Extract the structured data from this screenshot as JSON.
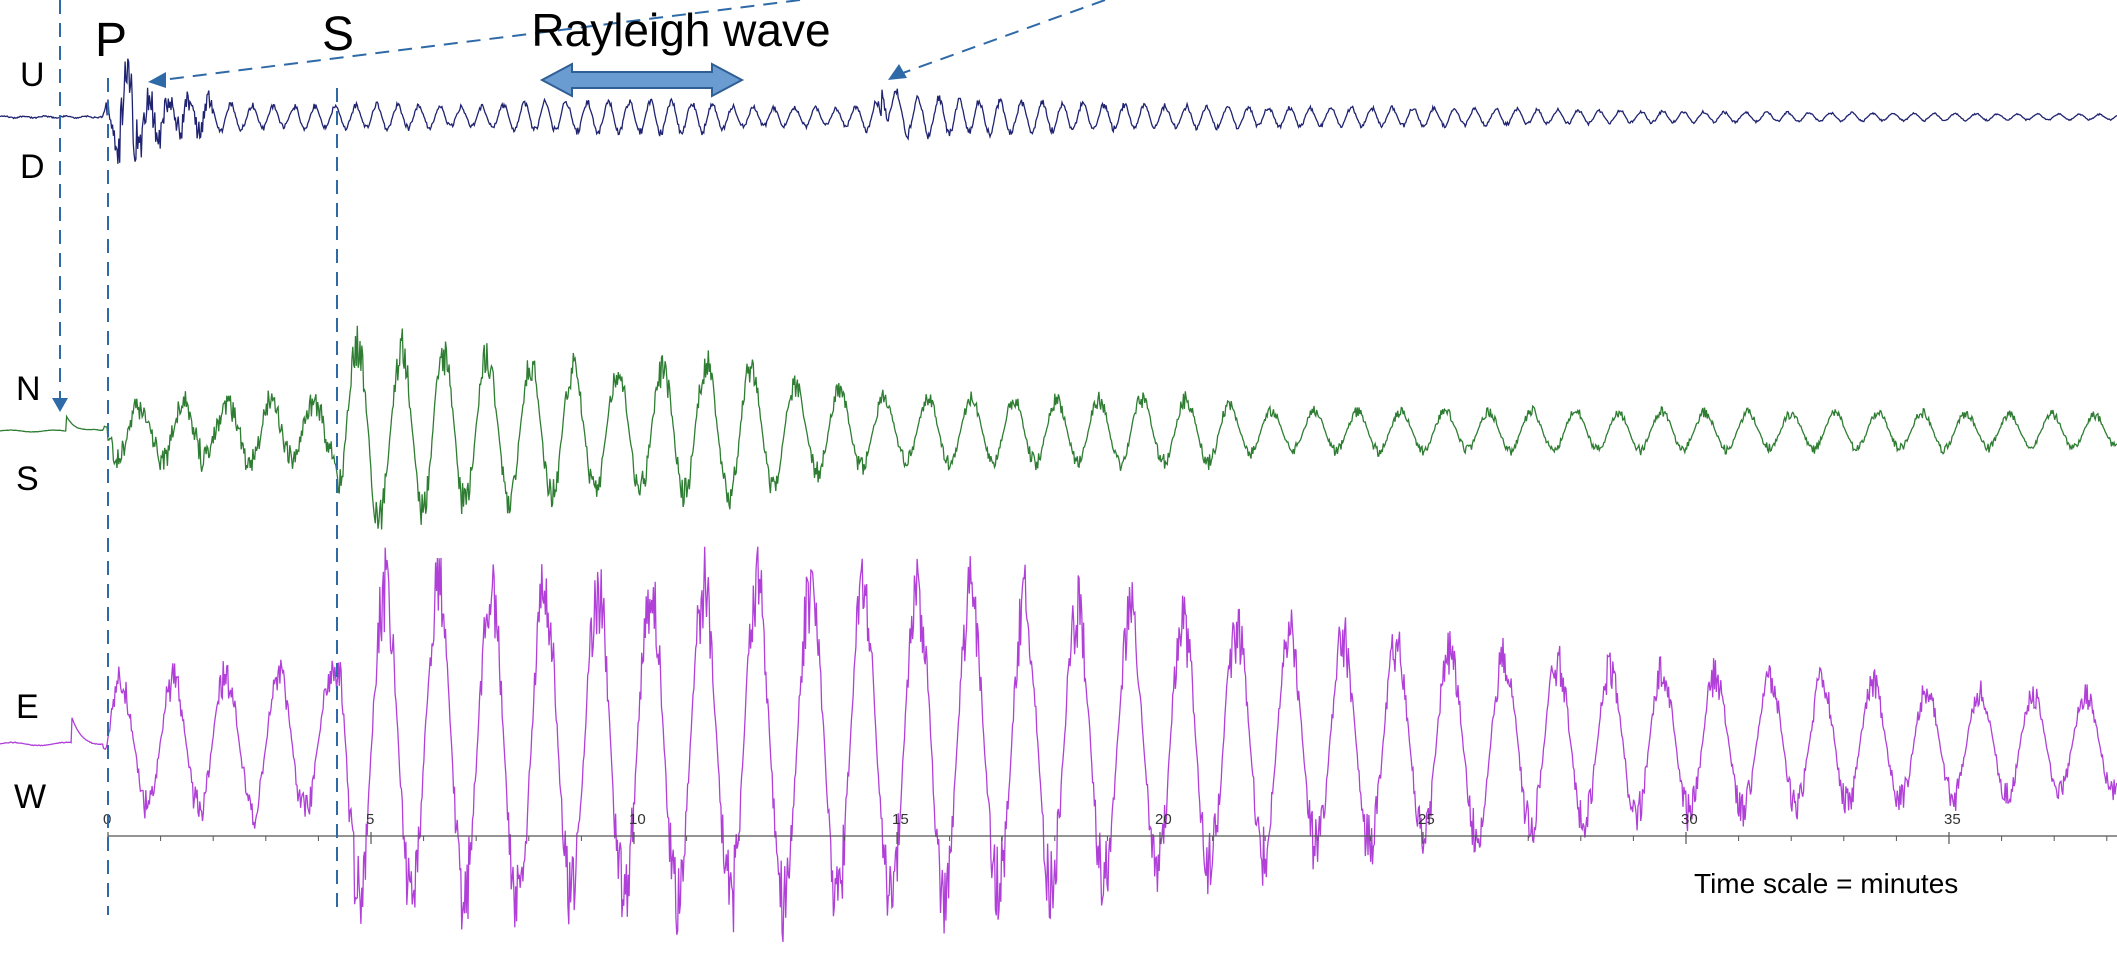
{
  "chart_data": {
    "type": "line",
    "title": "",
    "xlabel": "Time scale = minutes",
    "ylabel": "",
    "x_unit": "minutes",
    "xlim": [
      0,
      38
    ],
    "x_ticks": [
      0,
      5,
      10,
      15,
      20,
      25,
      30,
      35
    ],
    "x_tick_labels": [
      "0",
      "5",
      "10",
      "15",
      "20",
      "25",
      "30",
      "35"
    ],
    "grid": false,
    "legend": "none",
    "series": [
      {
        "key": "ud",
        "top_label": "U",
        "bottom_label": "D",
        "color": "#1f2370",
        "pre_event_start": -2.0,
        "envelope": [
          [
            -2,
            0.02
          ],
          [
            -0.1,
            0.02
          ],
          [
            0,
            0.35
          ],
          [
            0.3,
            1.0
          ],
          [
            1.0,
            0.45
          ],
          [
            3.0,
            0.25
          ],
          [
            4.3,
            0.25
          ],
          [
            5,
            0.28
          ],
          [
            7,
            0.22
          ],
          [
            8,
            0.32
          ],
          [
            11,
            0.38
          ],
          [
            12,
            0.22
          ],
          [
            14,
            0.2
          ],
          [
            15,
            0.45
          ],
          [
            17,
            0.35
          ],
          [
            20,
            0.25
          ],
          [
            25,
            0.2
          ],
          [
            30,
            0.12
          ],
          [
            35,
            0.08
          ],
          [
            38,
            0.06
          ]
        ],
        "events": [
          {
            "x": 14.7,
            "amplitude": 1.1
          }
        ]
      },
      {
        "key": "ns",
        "top_label": "N",
        "bottom_label": "S",
        "color": "#2e7d32",
        "pre_event_start": -2.0,
        "envelope": [
          [
            -2,
            0.01
          ],
          [
            -0.1,
            0.01
          ],
          [
            0,
            0.3
          ],
          [
            4.3,
            0.33
          ],
          [
            4.5,
            1.0
          ],
          [
            8,
            0.75
          ],
          [
            10,
            0.65
          ],
          [
            12,
            0.8
          ],
          [
            13,
            0.5
          ],
          [
            15,
            0.35
          ],
          [
            21,
            0.35
          ],
          [
            22,
            0.22
          ],
          [
            28,
            0.22
          ],
          [
            32,
            0.2
          ],
          [
            35,
            0.2
          ],
          [
            38,
            0.18
          ]
        ],
        "events": [
          {
            "x": -0.8,
            "amplitude": 0.25
          }
        ]
      },
      {
        "key": "ew",
        "top_label": "E",
        "bottom_label": "W",
        "color": "#b040d8",
        "pre_event_start": -2.0,
        "envelope": [
          [
            -2,
            0.01
          ],
          [
            -0.1,
            0.01
          ],
          [
            0,
            0.4
          ],
          [
            4.3,
            0.45
          ],
          [
            4.5,
            1.0
          ],
          [
            15,
            1.0
          ],
          [
            20,
            0.8
          ],
          [
            25,
            0.6
          ],
          [
            30,
            0.45
          ],
          [
            35,
            0.35
          ],
          [
            38,
            0.3
          ]
        ],
        "events": [
          {
            "x": -0.7,
            "amplitude": 0.25
          }
        ]
      }
    ],
    "annotations": [
      {
        "key": "p",
        "text": "P",
        "x": 0,
        "kind": "phase-line"
      },
      {
        "key": "s",
        "text": "S",
        "x": 4.3,
        "kind": "phase-line"
      },
      {
        "key": "rayleigh",
        "text": "Rayleigh wave",
        "x_start": 8.2,
        "x_end": 12,
        "kind": "double-arrow"
      }
    ]
  },
  "colors": {
    "dashed_lines": "#2f6aa8",
    "arrow_fill": "#6a9bd1",
    "arrow_stroke": "#2f5f94",
    "axis": "#555555"
  }
}
